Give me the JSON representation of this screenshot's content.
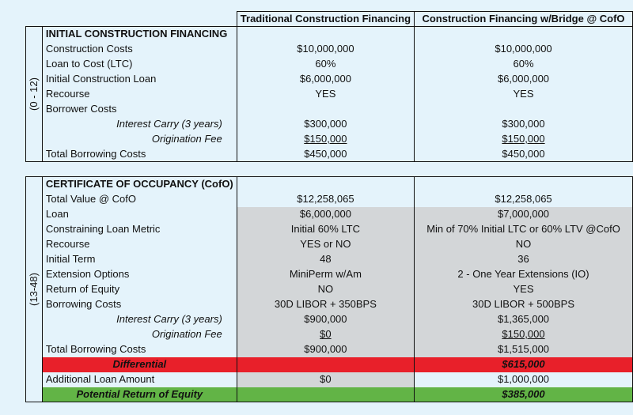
{
  "headers": {
    "traditional": "Traditional Construction Financing",
    "bridge": "Construction Financing w/Bridge @ CofO"
  },
  "periods": {
    "initial": "(0 - 12)",
    "cofo": "(13-48)"
  },
  "sections": {
    "initial_title": "INITIAL CONSTRUCTION FINANCING",
    "cofo_title": "CERTIFICATE OF OCCUPANCY (CofO)"
  },
  "initial_rows": [
    {
      "label": "Construction Costs",
      "trad": "$10,000,000",
      "bridge": "$10,000,000"
    },
    {
      "label": "Loan to Cost (LTC)",
      "trad": "60%",
      "bridge": "60%"
    },
    {
      "label": "Initial Construction Loan",
      "trad": "$6,000,000",
      "bridge": "$6,000,000"
    },
    {
      "label": "Recourse",
      "trad": "YES",
      "bridge": "YES"
    },
    {
      "label": "Borrower Costs",
      "trad": "",
      "bridge": ""
    },
    {
      "label": "Interest Carry (3 years)",
      "trad": "$300,000",
      "bridge": "$300,000"
    },
    {
      "label": "Origination Fee",
      "trad": "$150,000",
      "bridge": "$150,000"
    },
    {
      "label": "Total Borrowing Costs",
      "trad": "$450,000",
      "bridge": "$450,000"
    }
  ],
  "cofo_rows": [
    {
      "label": "Total Value @ CofO",
      "trad": "$12,258,065",
      "bridge": "$12,258,065"
    },
    {
      "label": "Loan",
      "trad": "$6,000,000",
      "bridge": "$7,000,000"
    },
    {
      "label": "Constraining Loan Metric",
      "trad": "Initial 60% LTC",
      "bridge": "Min of 70% Initial LTC or 60% LTV @CofO"
    },
    {
      "label": "Recourse",
      "trad": "YES or NO",
      "bridge": "NO"
    },
    {
      "label": "Initial Term",
      "trad": "48",
      "bridge": "36"
    },
    {
      "label": "Extension Options",
      "trad": "MiniPerm w/Am",
      "bridge": "2 - One Year Extensions (IO)"
    },
    {
      "label": "Return of Equity",
      "trad": "NO",
      "bridge": "YES"
    },
    {
      "label": "Borrowing Costs",
      "trad": "30D LIBOR + 350BPS",
      "bridge": "30D LIBOR + 500BPS"
    },
    {
      "label": "Interest Carry (3 years)",
      "trad": "$900,000",
      "bridge": "$1,365,000"
    },
    {
      "label": "Origination Fee",
      "trad": "$0",
      "bridge": "$150,000"
    },
    {
      "label": "Total  Borrowing Costs",
      "trad": "$900,000",
      "bridge": "$1,515,000"
    },
    {
      "label": "Differential",
      "trad": "",
      "bridge": "$615,000"
    },
    {
      "label": "Additional Loan Amount",
      "trad": "$0",
      "bridge": "$1,000,000"
    },
    {
      "label": "Potential Return of Equity",
      "trad": "",
      "bridge": "$385,000"
    }
  ],
  "colors": {
    "background": "#e4f3fb",
    "grey_fill": "#d3d6d8",
    "differential_red": "#e8202a",
    "return_green": "#62b446"
  }
}
